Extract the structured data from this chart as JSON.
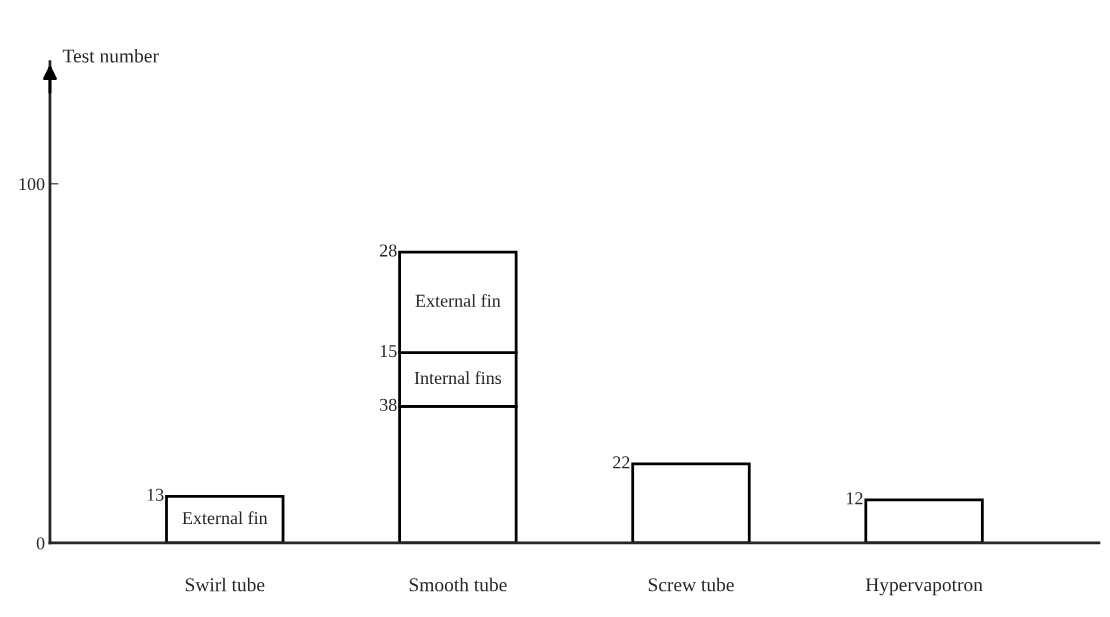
{
  "chart_data": {
    "type": "bar",
    "ylabel": "Test number",
    "categories": [
      "Swirl tube",
      "Smooth tube",
      "Screw tube",
      "Hypervapotron"
    ],
    "stacked": true,
    "data_labels": true,
    "series": [
      {
        "color": "#ffffff",
        "values": [
          null,
          38,
          22,
          12
        ]
      },
      {
        "name": "Internal fins",
        "color": "#ffffff",
        "values": [
          null,
          15,
          null,
          null
        ]
      },
      {
        "name": "External fin",
        "color": "#ffffff",
        "values": [
          13,
          28,
          null,
          null
        ]
      }
    ],
    "ylim": [
      0,
      134
    ],
    "yticks": [
      0,
      100
    ],
    "grid": false,
    "legend": false
  }
}
